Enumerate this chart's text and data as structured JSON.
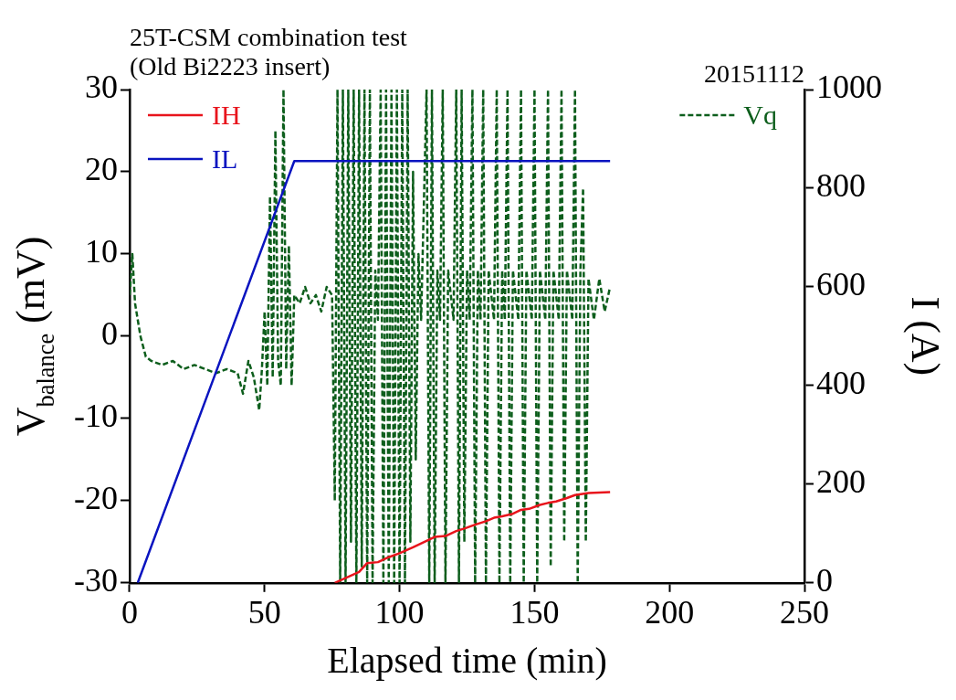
{
  "chart_data": {
    "type": "line",
    "title": "25T-CSM combination test\n(Old Bi2223 insert)",
    "annotations": [
      "20151112"
    ],
    "xlabel": "Elapsed time (min)",
    "ylabel": "V$_{balance}$ (mV)",
    "y2label": "I (A)",
    "xlim": [
      0,
      250
    ],
    "xticks": [
      0,
      50,
      100,
      150,
      200,
      250
    ],
    "ylim": [
      -30,
      30
    ],
    "yticks": [
      -30,
      -20,
      -10,
      0,
      10,
      20,
      30
    ],
    "y2lim": [
      0,
      1000
    ],
    "y2ticks": [
      0,
      200,
      400,
      600,
      800,
      1000
    ],
    "legend": "top left",
    "marker": "none",
    "grid": false,
    "series": [
      {
        "name": "IH",
        "color": "#e8141c",
        "axis": "y2",
        "line_style": "solid",
        "x": [
          76,
          85,
          88,
          92,
          96,
          100,
          105,
          110,
          113,
          117,
          121,
          124,
          128,
          132,
          135,
          138,
          142,
          145,
          148,
          152,
          155,
          158,
          162,
          165,
          170,
          178
        ],
        "values": [
          0,
          22,
          40,
          42,
          52,
          60,
          72,
          85,
          93,
          95,
          105,
          110,
          118,
          125,
          132,
          135,
          140,
          148,
          150,
          158,
          162,
          165,
          172,
          178,
          182,
          184
        ]
      },
      {
        "name": "IL",
        "color": "#0a14c0",
        "axis": "y2",
        "line_style": "solid",
        "x": [
          3,
          61,
          178
        ],
        "values": [
          0,
          855,
          855
        ]
      },
      {
        "name": "Vq",
        "color": "#0d5e1c",
        "axis": "y",
        "line_style": "dashed",
        "x": [
          0,
          1,
          2,
          4,
          6,
          8,
          12,
          16,
          20,
          24,
          28,
          32,
          36,
          40,
          42,
          44,
          46,
          48,
          49,
          50,
          51,
          52,
          53,
          54,
          55,
          56,
          57,
          58,
          59,
          60,
          61,
          63,
          65,
          67,
          69,
          71,
          73,
          75,
          76,
          77,
          78,
          79,
          80,
          81,
          82,
          83,
          84,
          85,
          86,
          87,
          88,
          89,
          90,
          91,
          92,
          93,
          94,
          95,
          96,
          97,
          98,
          99,
          100,
          101,
          102,
          103,
          104,
          105,
          106,
          107,
          108,
          110,
          111,
          112,
          113,
          114,
          115,
          116,
          117,
          118,
          120,
          121,
          122,
          123,
          124,
          125,
          126,
          127,
          128,
          129,
          130,
          131,
          132,
          133,
          135,
          136,
          137,
          138,
          139,
          140,
          141,
          142,
          144,
          145,
          146,
          147,
          149,
          150,
          151,
          152,
          154,
          155,
          156,
          157,
          159,
          160,
          161,
          162,
          164,
          165,
          166,
          167,
          168,
          169,
          170,
          172,
          174,
          176,
          178
        ],
        "values": [
          5,
          10,
          4,
          0,
          -2.5,
          -3,
          -3.5,
          -3,
          -4,
          -3.5,
          -4,
          -4.5,
          -4,
          -4.5,
          -7,
          -3,
          -5,
          -9,
          -4,
          3,
          -6,
          17,
          -5,
          25,
          -3,
          -6,
          30,
          -4,
          11,
          -6,
          5,
          4,
          6,
          4,
          5,
          3,
          6,
          5,
          -20,
          30,
          -30,
          30,
          -30,
          30,
          -25,
          30,
          -30,
          30,
          -28,
          30,
          -30,
          30,
          -30,
          8,
          2,
          30,
          -30,
          30,
          -30,
          30,
          -30,
          30,
          -30,
          30,
          -30,
          30,
          -25,
          20,
          -15,
          10,
          2,
          30,
          -30,
          30,
          -30,
          8,
          2,
          30,
          -30,
          8,
          2,
          30,
          -30,
          30,
          -25,
          8,
          2,
          30,
          -30,
          8,
          2,
          30,
          -30,
          8,
          2,
          30,
          -30,
          8,
          2,
          30,
          -30,
          8,
          2,
          30,
          -30,
          8,
          2,
          30,
          -30,
          8,
          2,
          30,
          -28,
          8,
          2,
          30,
          -25,
          8,
          2,
          30,
          -30,
          8,
          18,
          -25,
          7,
          2,
          7,
          3,
          6
        ]
      }
    ]
  }
}
